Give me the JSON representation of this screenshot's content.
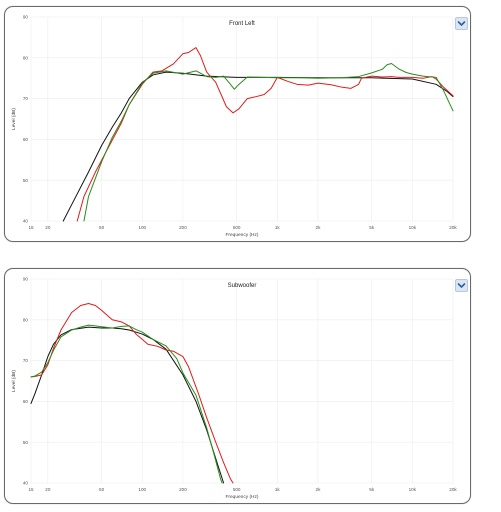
{
  "chart_data": [
    {
      "type": "line",
      "title": "Front Left",
      "xlabel": "Frequency (Hz)",
      "ylabel": "Level (dB)",
      "x_scale": "log",
      "xlim": [
        15,
        20000
      ],
      "ylim": [
        40,
        90
      ],
      "yticks": [
        40,
        50,
        60,
        70,
        80,
        90
      ],
      "xtick_values": [
        15,
        20,
        50,
        100,
        200,
        500,
        1000,
        2000,
        5000,
        10000,
        20000
      ],
      "xtick_labels": [
        "15",
        "20",
        "50",
        "100",
        "200",
        "500",
        "1k",
        "2k",
        "5k",
        "10k",
        "20k"
      ],
      "grid": true,
      "series": [
        {
          "color": "#111111",
          "points": [
            [
              26,
              40
            ],
            [
              30,
              44
            ],
            [
              40,
              52
            ],
            [
              50,
              58.5
            ],
            [
              60,
              63
            ],
            [
              70,
              66.5
            ],
            [
              80,
              70
            ],
            [
              100,
              74
            ],
            [
              120,
              75.8
            ],
            [
              150,
              76.5
            ],
            [
              200,
              76.2
            ],
            [
              300,
              75.5
            ],
            [
              500,
              75.2
            ],
            [
              1000,
              75.2
            ],
            [
              2000,
              75.1
            ],
            [
              5000,
              75.1
            ],
            [
              10000,
              74.8
            ],
            [
              15000,
              73.5
            ],
            [
              18000,
              71.8
            ],
            [
              20000,
              70.5
            ]
          ]
        },
        {
          "color": "#e01b1b",
          "points": [
            [
              33,
              40
            ],
            [
              37,
              46
            ],
            [
              45,
              52
            ],
            [
              55,
              57.5
            ],
            [
              70,
              64
            ],
            [
              80,
              68.5
            ],
            [
              100,
              73.5
            ],
            [
              120,
              76.5
            ],
            [
              140,
              76.8
            ],
            [
              170,
              78.5
            ],
            [
              200,
              81
            ],
            [
              220,
              81.3
            ],
            [
              250,
              82.5
            ],
            [
              270,
              80.5
            ],
            [
              300,
              76.5
            ],
            [
              350,
              74
            ],
            [
              420,
              68
            ],
            [
              470,
              66.5
            ],
            [
              520,
              67.5
            ],
            [
              600,
              70
            ],
            [
              700,
              70.5
            ],
            [
              800,
              71
            ],
            [
              900,
              72.5
            ],
            [
              1000,
              75.2
            ],
            [
              1200,
              74.2
            ],
            [
              1400,
              73.5
            ],
            [
              1700,
              73.3
            ],
            [
              2000,
              73.8
            ],
            [
              2500,
              73.4
            ],
            [
              3000,
              72.8
            ],
            [
              3500,
              72.5
            ],
            [
              4000,
              73.5
            ],
            [
              4200,
              75
            ],
            [
              5000,
              75.5
            ],
            [
              6000,
              75.3
            ],
            [
              7000,
              75.4
            ],
            [
              8000,
              75.2
            ],
            [
              10000,
              75.2
            ],
            [
              12000,
              75
            ],
            [
              14000,
              75.4
            ],
            [
              15000,
              74.8
            ],
            [
              17000,
              72.8
            ],
            [
              20000,
              70.7
            ]
          ]
        },
        {
          "color": "#2a8c1a",
          "points": [
            [
              37,
              40
            ],
            [
              40,
              46
            ],
            [
              50,
              54.5
            ],
            [
              60,
              60.5
            ],
            [
              70,
              64.5
            ],
            [
              80,
              68.5
            ],
            [
              100,
              73.8
            ],
            [
              120,
              76.2
            ],
            [
              150,
              76.8
            ],
            [
              200,
              76
            ],
            [
              250,
              76.8
            ],
            [
              300,
              75.4
            ],
            [
              350,
              75.2
            ],
            [
              400,
              75.5
            ],
            [
              450,
              73.5
            ],
            [
              480,
              72.3
            ],
            [
              520,
              73.5
            ],
            [
              600,
              75.3
            ],
            [
              800,
              75.2
            ],
            [
              1000,
              75.1
            ],
            [
              1500,
              75.1
            ],
            [
              2000,
              75
            ],
            [
              3000,
              75.1
            ],
            [
              4000,
              75.4
            ],
            [
              5000,
              76.3
            ],
            [
              6000,
              77.2
            ],
            [
              6500,
              78.3
            ],
            [
              7000,
              78.6
            ],
            [
              8000,
              77.2
            ],
            [
              9000,
              76.4
            ],
            [
              10000,
              76
            ],
            [
              12000,
              75.5
            ],
            [
              15000,
              75.2
            ],
            [
              17000,
              72
            ],
            [
              20000,
              67
            ]
          ]
        }
      ]
    },
    {
      "type": "line",
      "title": "Subwoofer",
      "xlabel": "Frequency (Hz)",
      "ylabel": "Level (dB)",
      "x_scale": "log",
      "xlim": [
        15,
        20000
      ],
      "ylim": [
        40,
        90
      ],
      "yticks": [
        40,
        50,
        60,
        70,
        80,
        90
      ],
      "xtick_values": [
        15,
        20,
        50,
        100,
        200,
        500,
        1000,
        2000,
        5000,
        10000,
        20000
      ],
      "xtick_labels": [
        "15",
        "20",
        "50",
        "100",
        "200",
        "500",
        "1k",
        "2k",
        "5k",
        "10k",
        "20k"
      ],
      "grid": true,
      "series": [
        {
          "color": "#111111",
          "points": [
            [
              15,
              59.5
            ],
            [
              16,
              61.8
            ],
            [
              18,
              66.5
            ],
            [
              20,
              71
            ],
            [
              22,
              74
            ],
            [
              25,
              76.3
            ],
            [
              30,
              77.6
            ],
            [
              40,
              78.2
            ],
            [
              50,
              78
            ],
            [
              60,
              78
            ],
            [
              70,
              77.8
            ],
            [
              80,
              77.5
            ],
            [
              100,
              76.5
            ],
            [
              120,
              75.2
            ],
            [
              150,
              72.8
            ],
            [
              200,
              66.5
            ],
            [
              250,
              60
            ],
            [
              300,
              53
            ],
            [
              350,
              46
            ],
            [
              400,
              40
            ]
          ]
        },
        {
          "color": "#e01b1b",
          "points": [
            [
              15,
              66
            ],
            [
              16,
              66.1
            ],
            [
              18,
              66.5
            ],
            [
              20,
              69
            ],
            [
              22,
              73
            ],
            [
              25,
              77.5
            ],
            [
              30,
              81.8
            ],
            [
              35,
              83.5
            ],
            [
              40,
              84
            ],
            [
              45,
              83.5
            ],
            [
              50,
              82.3
            ],
            [
              60,
              80
            ],
            [
              70,
              79.5
            ],
            [
              80,
              78.5
            ],
            [
              90,
              76.5
            ],
            [
              100,
              75.2
            ],
            [
              110,
              74
            ],
            [
              130,
              73.5
            ],
            [
              150,
              72.6
            ],
            [
              170,
              72.3
            ],
            [
              200,
              71
            ],
            [
              220,
              68.5
            ],
            [
              260,
              62
            ],
            [
              300,
              56
            ],
            [
              350,
              50
            ],
            [
              400,
              45
            ],
            [
              450,
              41
            ],
            [
              470,
              40
            ]
          ]
        },
        {
          "color": "#2a8c1a",
          "points": [
            [
              15,
              66
            ],
            [
              16,
              66.2
            ],
            [
              18,
              67.2
            ],
            [
              20,
              69.5
            ],
            [
              22,
              72.5
            ],
            [
              25,
              75.8
            ],
            [
              30,
              77.5
            ],
            [
              35,
              78.2
            ],
            [
              40,
              78.7
            ],
            [
              45,
              78.5
            ],
            [
              50,
              78.3
            ],
            [
              60,
              78
            ],
            [
              70,
              78.4
            ],
            [
              80,
              78.5
            ],
            [
              90,
              77.6
            ],
            [
              100,
              77
            ],
            [
              120,
              75.2
            ],
            [
              150,
              73.6
            ],
            [
              180,
              70.5
            ],
            [
              200,
              67
            ],
            [
              250,
              61.5
            ],
            [
              300,
              53.5
            ],
            [
              340,
              47
            ],
            [
              380,
              41
            ],
            [
              390,
              40
            ]
          ]
        }
      ]
    }
  ]
}
